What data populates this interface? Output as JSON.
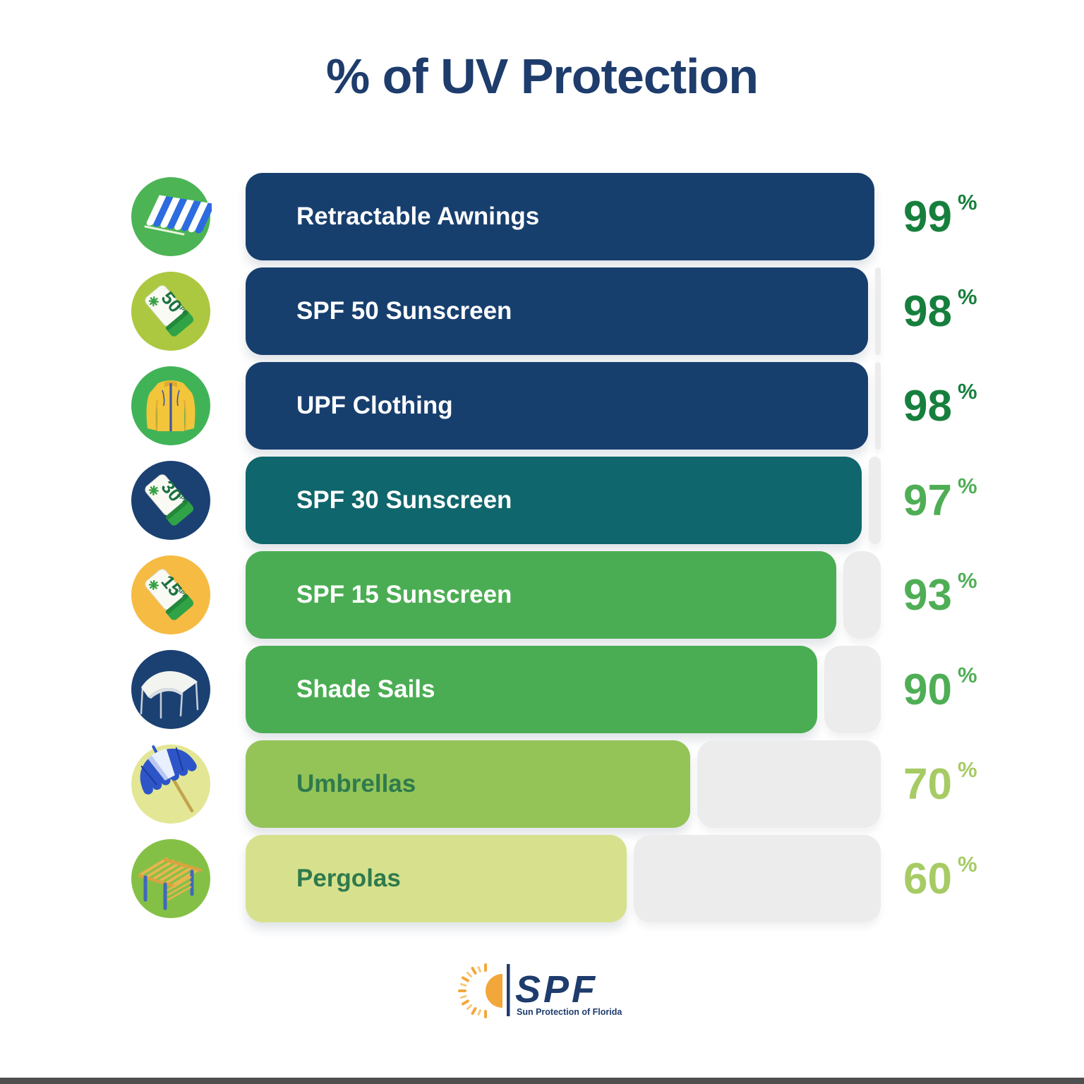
{
  "title": "% of UV Protection",
  "chart_data": {
    "type": "bar",
    "orientation": "horizontal",
    "title": "% of UV Protection",
    "categories": [
      "Retractable Awnings",
      "SPF 50 Sunscreen",
      "UPF Clothing",
      "SPF 30 Sunscreen",
      "SPF 15 Sunscreen",
      "Shade Sails",
      "Umbrellas",
      "Pergolas"
    ],
    "values": [
      99,
      98,
      98,
      97,
      93,
      90,
      70,
      60
    ],
    "unit": "%",
    "xlim": [
      0,
      100
    ],
    "grid": false,
    "legend": "none"
  },
  "rows": [
    {
      "label": "Retractable Awnings",
      "value": "99",
      "pct_sign": "%",
      "width_pct": 99,
      "bar_color": "#173f6e",
      "label_color": "#ffffff",
      "value_color": "#177f3d",
      "icon": "awning-icon",
      "icon_bg": "#4cb455"
    },
    {
      "label": "SPF 50 Sunscreen",
      "value": "98",
      "pct_sign": "%",
      "width_pct": 98,
      "bar_color": "#173f6e",
      "label_color": "#ffffff",
      "value_color": "#177f3d",
      "icon": "spf-50-tube-icon",
      "icon_bg": "#acc840"
    },
    {
      "label": "UPF Clothing",
      "value": "98",
      "pct_sign": "%",
      "width_pct": 98,
      "bar_color": "#173f6e",
      "label_color": "#ffffff",
      "value_color": "#177f3d",
      "icon": "upf-clothing-icon",
      "icon_bg": "#41b357"
    },
    {
      "label": "SPF 30 Sunscreen",
      "value": "97",
      "pct_sign": "%",
      "width_pct": 97,
      "bar_color": "#0f666c",
      "label_color": "#ffffff",
      "value_color": "#4fae55",
      "icon": "spf-30-tube-icon",
      "icon_bg": "#1b4173"
    },
    {
      "label": "SPF 15 Sunscreen",
      "value": "93",
      "pct_sign": "%",
      "width_pct": 93,
      "bar_color": "#4bad53",
      "label_color": "#ffffff",
      "value_color": "#4fae55",
      "icon": "spf-15-tube-icon",
      "icon_bg": "#f6bb43"
    },
    {
      "label": "Shade Sails",
      "value": "90",
      "pct_sign": "%",
      "width_pct": 90,
      "bar_color": "#4bad53",
      "label_color": "#ffffff",
      "value_color": "#4fae55",
      "icon": "shade-sail-icon",
      "icon_bg": "#1b4173"
    },
    {
      "label": "Umbrellas",
      "value": "70",
      "pct_sign": "%",
      "width_pct": 70,
      "bar_color": "#94c458",
      "label_color": "#2e7a4c",
      "value_color": "#a6cb64",
      "icon": "beach-umbrella-icon",
      "icon_bg": "#e3e795"
    },
    {
      "label": "Pergolas",
      "value": "60",
      "pct_sign": "%",
      "width_pct": 60,
      "bar_color": "#d7e18d",
      "label_color": "#2e7a4c",
      "value_color": "#a6cb64",
      "icon": "pergola-icon",
      "icon_bg": "#85c046"
    }
  ],
  "colors": {
    "background": "#ffffff",
    "track": "#ececec",
    "title": "#1e3c6c",
    "bottom_strip": "#4f4f4f",
    "dark_green_value": "#177f3d",
    "mid_green_value": "#4fae55",
    "light_green_value": "#a6cb64",
    "logo_navy": "#1e3c6c",
    "logo_sun_orange": "#f2a73b"
  },
  "logo": {
    "brand": "SPF",
    "tagline": "Sun Protection of Florida"
  }
}
